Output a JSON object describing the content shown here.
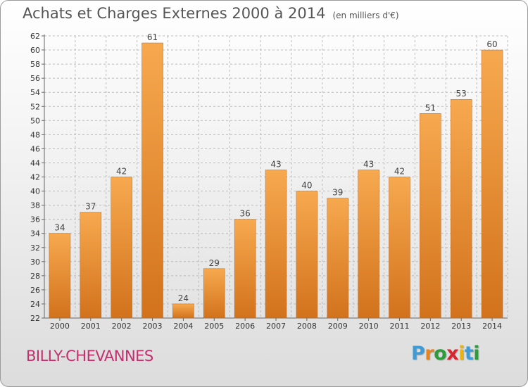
{
  "title": "Achats et Charges Externes 2000 à 2014",
  "subtitle": "(en milliers d'€)",
  "place": "BILLY-CHEVANNES",
  "brand": {
    "letters": [
      "P",
      "r",
      "o",
      "x",
      "i",
      "t",
      "i"
    ],
    "colors": [
      "#3d9bd6",
      "#e8821e",
      "#2e9c3c",
      "#d7262f",
      "#f0b400",
      "#3d9bd6",
      "#2e9c3c"
    ]
  },
  "colors": {
    "bar_top": "#f7a94f",
    "bar_bottom": "#d2721c",
    "bar_edge": "#b8621a",
    "grid": "#bbbbbb",
    "place": "#c3306e",
    "title": "#555555"
  },
  "chart_data": {
    "type": "bar",
    "title": "Achats et Charges Externes 2000 à 2014",
    "subtitle": "(en milliers d'€)",
    "categories": [
      "2000",
      "2001",
      "2002",
      "2003",
      "2004",
      "2005",
      "2006",
      "2007",
      "2008",
      "2009",
      "2010",
      "2011",
      "2012",
      "2013",
      "2014"
    ],
    "values": [
      34,
      37,
      42,
      61,
      24,
      29,
      36,
      43,
      40,
      39,
      43,
      42,
      51,
      53,
      60
    ],
    "ylim": [
      22,
      62
    ],
    "yticks": [
      22,
      24,
      26,
      28,
      30,
      32,
      34,
      36,
      38,
      40,
      42,
      44,
      46,
      48,
      50,
      52,
      54,
      56,
      58,
      60,
      62
    ],
    "grid": "horizontal dashed",
    "data_labels": true
  }
}
